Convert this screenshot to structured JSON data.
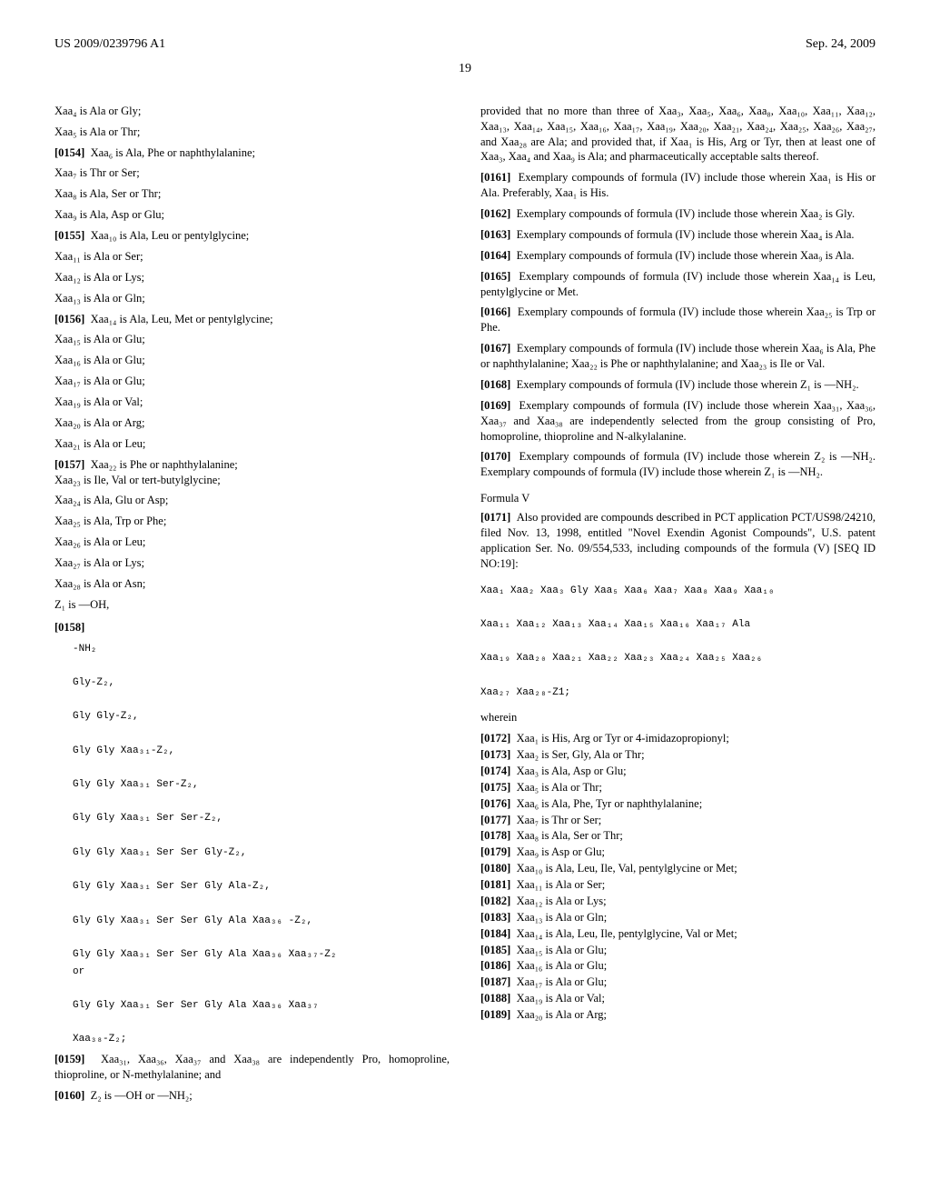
{
  "header": {
    "left": "US 2009/0239796 A1",
    "right": "Sep. 24, 2009"
  },
  "page_num": "19",
  "left_col": {
    "lines_pre": [
      "Xaa₄ is Ala or Gly;",
      "Xaa₅ is Ala or Thr;"
    ],
    "p0154": "Xaa₆ is Ala, Phe or naphthylalanine;",
    "lines_7_9": [
      "Xaa₇ is Thr or Ser;",
      "Xaa₈ is Ala, Ser or Thr;",
      "Xaa₉ is Ala, Asp or Glu;"
    ],
    "p0155": "Xaa₁₀ is Ala, Leu or pentylglycine;",
    "lines_11_13": [
      "Xaa₁₁ is Ala or Ser;",
      "Xaa₁₂ is Ala or Lys;",
      "Xaa₁₃ is Ala or Gln;"
    ],
    "p0156": "Xaa₁₄ is Ala, Leu, Met or pentylglycine;",
    "lines_15_21": [
      "Xaa₁₅ is Ala or Glu;",
      "Xaa₁₆ is Ala or Glu;",
      "Xaa₁₇ is Ala or Glu;",
      "Xaa₁₉ is Ala or Val;",
      "Xaa₂₀ is Ala or Arg;",
      "Xaa₂₁ is Ala or Leu;"
    ],
    "p0157": "Xaa₂₂ is Phe or naphthylalanine;",
    "line_23": "Xaa₂₃ is Ile, Val or tert-butylglycine;",
    "lines_24_z1": [
      "Xaa₂₄ is Ala, Glu or Asp;",
      "Xaa₂₅ is Ala, Trp or Phe;",
      "Xaa₂₆ is Ala or Leu;",
      "Xaa₂₇ is Ala or Lys;",
      "Xaa₂₈ is Ala or Asn;",
      "Z₁ is —OH,"
    ],
    "p0158_label": "[0158]",
    "mono_block": "-NH₂\n\nGly-Z₂,\n\nGly Gly-Z₂,\n\nGly Gly Xaa₃₁-Z₂,\n\nGly Gly Xaa₃₁ Ser-Z₂,\n\nGly Gly Xaa₃₁ Ser Ser-Z₂,\n\nGly Gly Xaa₃₁ Ser Ser Gly-Z₂,\n\nGly Gly Xaa₃₁ Ser Ser Gly Ala-Z₂,\n\nGly Gly Xaa₃₁ Ser Ser Gly Ala Xaa₃₆ -Z₂,\n\nGly Gly Xaa₃₁ Ser Ser Gly Ala Xaa₃₆ Xaa₃₇-Z₂\nor\n\nGly Gly Xaa₃₁ Ser Ser Gly Ala Xaa₃₆ Xaa₃₇\n\nXaa₃₈-Z₂;",
    "p0159": "Xaa₃₁, Xaa₃₆, Xaa₃₇ and Xaa₃₈ are independently Pro, homoproline, thioproline, or N-methylalanine; and",
    "p0160": "Z₂ is —OH or —NH₂;"
  },
  "right_col": {
    "intro": "provided that no more than three of Xaa₃, Xaa₅, Xaa₆, Xaa₈, Xaa₁₀, Xaa₁₁, Xaa₁₂, Xaa₁₃, Xaa₁₄, Xaa₁₅, Xaa₁₆, Xaa₁₇, Xaa₁₉, Xaa₂₀, Xaa₂₁, Xaa₂₄, Xaa₂₅, Xaa₂₆, Xaa₂₇, and Xaa₂₈ are Ala; and provided that, if Xaa₁ is His, Arg or Tyr, then at least one of Xaa₃, Xaa₄ and Xaa₉ is Ala; and pharmaceutically acceptable salts thereof.",
    "p0161": "Exemplary compounds of formula (IV) include those wherein Xaa₁ is His or Ala. Preferably, Xaa₁ is His.",
    "p0162": "Exemplary compounds of formula (IV) include those wherein Xaa₂ is Gly.",
    "p0163": "Exemplary compounds of formula (IV) include those wherein Xaa₄ is Ala.",
    "p0164": "Exemplary compounds of formula (IV) include those wherein Xaa₉ is Ala.",
    "p0165": "Exemplary compounds of formula (IV) include those wherein Xaa₁₄ is Leu, pentylglycine or Met.",
    "p0166": "Exemplary compounds of formula (IV) include those wherein Xaa₂₅ is Trp or Phe.",
    "p0167": "Exemplary compounds of formula (IV) include those wherein Xaa₆ is Ala, Phe or naphthylalanine; Xaa₂₂ is Phe or naphthylalanine; and Xaa₂₃ is Ile or Val.",
    "p0168": "Exemplary compounds of formula (IV) include those wherein Z₁ is —NH₂.",
    "p0169": "Exemplary compounds of formula (IV) include those wherein Xaa₃₁, Xaa₃₆, Xaa₃₇ and Xaa₃₈ are independently selected from the group consisting of Pro, homoproline, thioproline and N-alkylalanine.",
    "p0170": "Exemplary compounds of formula (IV) include those wherein Z₂ is —NH₂. Exemplary compounds of formula (IV) include those wherein Z₁ is —NH₂.",
    "formula_label": "Formula V",
    "p0171": "Also provided are compounds described in PCT application PCT/US98/24210, filed Nov. 13, 1998, entitled \"Novel Exendin Agonist Compounds\", U.S. patent application Ser. No. 09/554,533, including compounds of the formula (V) [SEQ ID NO:19]:",
    "seq_block": "Xaa₁ Xaa₂ Xaa₃ Gly Xaa₅ Xaa₆ Xaa₇ Xaa₈ Xaa₉ Xaa₁₀\n\nXaa₁₁ Xaa₁₂ Xaa₁₃ Xaa₁₄ Xaa₁₅ Xaa₁₆ Xaa₁₇ Ala\n\nXaa₁₉ Xaa₂₀ Xaa₂₁ Xaa₂₂ Xaa₂₃ Xaa₂₄ Xaa₂₅ Xaa₂₆\n\nXaa₂₇ Xaa₂₈-Z1;",
    "wherein": "wherein",
    "defs": [
      {
        "n": "[0172]",
        "t": "Xaa₁ is His, Arg or Tyr or 4-imidazopropionyl;"
      },
      {
        "n": "[0173]",
        "t": "Xaa₂ is Ser, Gly, Ala or Thr;"
      },
      {
        "n": "[0174]",
        "t": "Xaa₃ is Ala, Asp or Glu;"
      },
      {
        "n": "[0175]",
        "t": "Xaa₅ is Ala or Thr;"
      },
      {
        "n": "[0176]",
        "t": "Xaa₆ is Ala, Phe, Tyr or naphthylalanine;"
      },
      {
        "n": "[0177]",
        "t": "Xaa₇ is Thr or Ser;"
      },
      {
        "n": "[0178]",
        "t": "Xaa₈ is Ala, Ser or Thr;"
      },
      {
        "n": "[0179]",
        "t": "Xaa₉ is Asp or Glu;"
      },
      {
        "n": "[0180]",
        "t": "Xaa₁₀ is Ala, Leu, Ile, Val, pentylglycine or Met;"
      },
      {
        "n": "[0181]",
        "t": "Xaa₁₁ is Ala or Ser;"
      },
      {
        "n": "[0182]",
        "t": "Xaa₁₂ is Ala or Lys;"
      },
      {
        "n": "[0183]",
        "t": "Xaa₁₃ is Ala or Gln;"
      },
      {
        "n": "[0184]",
        "t": "Xaa₁₄ is Ala, Leu, Ile, pentylglycine, Val or Met;"
      },
      {
        "n": "[0185]",
        "t": "Xaa₁₅ is Ala or Glu;"
      },
      {
        "n": "[0186]",
        "t": "Xaa₁₆ is Ala or Glu;"
      },
      {
        "n": "[0187]",
        "t": "Xaa₁₇ is Ala or Glu;"
      },
      {
        "n": "[0188]",
        "t": "Xaa₁₉ is Ala or Val;"
      },
      {
        "n": "[0189]",
        "t": "Xaa₂₀ is Ala or Arg;"
      }
    ]
  }
}
